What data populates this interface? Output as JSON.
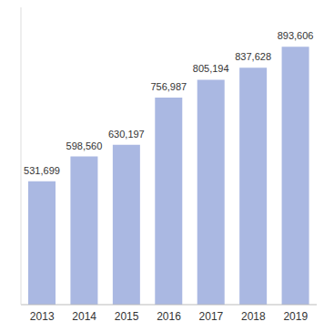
{
  "chart_data": {
    "type": "bar",
    "categories": [
      "2013",
      "2014",
      "2015",
      "2016",
      "2017",
      "2018",
      "2019"
    ],
    "values": [
      531699,
      598560,
      630197,
      756987,
      805194,
      837628,
      893606
    ],
    "value_labels": [
      "531,699",
      "598,560",
      "630,197",
      "756,987",
      "805,194",
      "837,628",
      "893,606"
    ],
    "color": "#aab8e2",
    "ylim": [
      200000,
      1000000
    ],
    "data_labels": true,
    "tick_labels": "x",
    "grid": false
  }
}
